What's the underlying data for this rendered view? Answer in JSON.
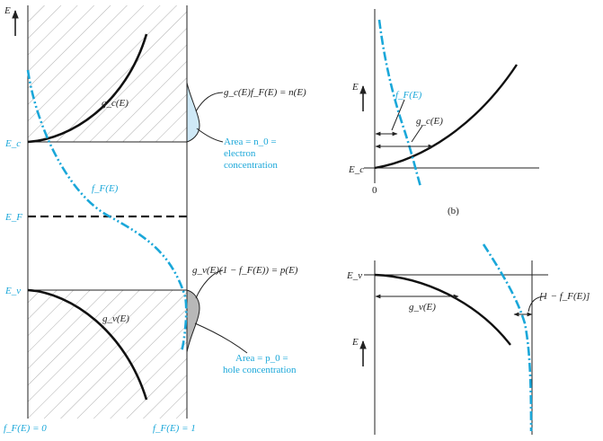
{
  "colors": {
    "accent": "#1aa7d9",
    "line": "#222222",
    "hatch": "#9a9a9a",
    "electron_fill": "#cfe9f7",
    "hole_fill": "#b8b8b8"
  },
  "panel_a": {
    "axis_label": "E",
    "levels": {
      "ec": "E_c",
      "ef": "E_F",
      "ev": "E_v"
    },
    "curve_labels": {
      "gc": "g_c(E)",
      "gv": "g_v(E)",
      "ff": "f_F(E)"
    },
    "annotations": {
      "n_expr": "g_c(E)f_F(E) = n(E)",
      "electron_area": "Area = n_0 =",
      "electron_area_line2": "electron",
      "electron_area_line3": "concentration",
      "p_expr": "g_v(E)(1 − f_F(E)) = p(E)",
      "hole_area": "Area = p_0 =",
      "hole_area_line2": "hole concentration"
    },
    "bottom_labels": {
      "left": "f_F(E) = 0",
      "right": "f_F(E) = 1"
    }
  },
  "panel_b": {
    "axis_label": "E",
    "level": "E_c",
    "zero": "0",
    "curve_labels": {
      "ff": "f_F(E)",
      "gc": "g_c(E)"
    },
    "caption": "(b)"
  },
  "panel_c": {
    "axis_label": "E",
    "level": "E_v",
    "curve_labels": {
      "gv": "g_v(E)"
    },
    "annotation": "[1 − f_F(E)]"
  }
}
